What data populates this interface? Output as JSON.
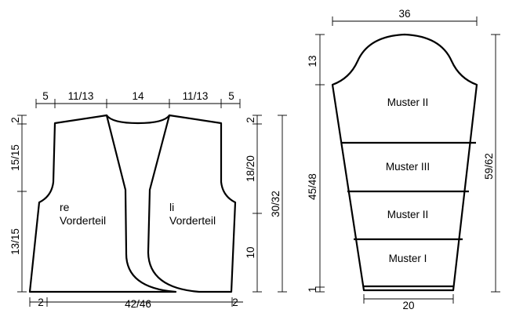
{
  "vest": {
    "top_widths": [
      "5",
      "11/13",
      "14",
      "11/13",
      "5"
    ],
    "bottom_corner_left": "2",
    "bottom_corner_right": "2",
    "bottom_width": "42/46",
    "left_heights": [
      "2",
      "15/15",
      "13/15"
    ],
    "right_heights_inner": [
      "2",
      "18/20",
      "10"
    ],
    "right_height_total": "30/32",
    "left_piece_label_line1": "re",
    "left_piece_label_line2": "Vorderteil",
    "right_piece_label_line1": "li",
    "right_piece_label_line2": "Vorderteil"
  },
  "sleeve": {
    "top_width": "36",
    "bottom_width": "20",
    "cap_height": "13",
    "body_height": "45/48",
    "bottom_band_height": "1",
    "total_height": "59/62",
    "sections": [
      "Muster II",
      "Muster III",
      "Muster II",
      "Muster I"
    ]
  }
}
